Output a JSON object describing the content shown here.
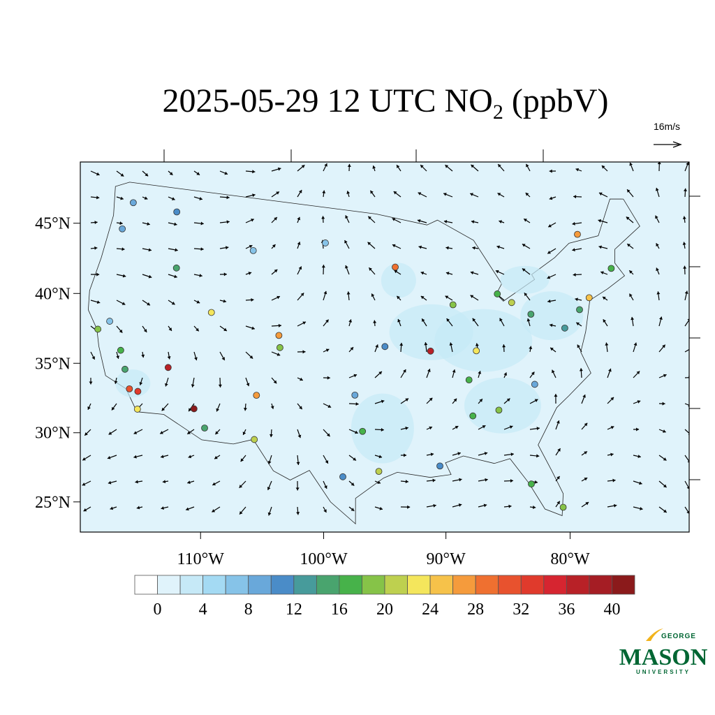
{
  "title": {
    "text": "2025-05-29 12 UTC NO",
    "subscript": "2",
    "suffix": " (ppbV)"
  },
  "wind_reference": "16m/s",
  "lat_ticks": [
    {
      "value": 45,
      "label": "45°N"
    },
    {
      "value": 40,
      "label": "40°N"
    },
    {
      "value": 35,
      "label": "35°N"
    },
    {
      "value": 30,
      "label": "30°N"
    },
    {
      "value": 25,
      "label": "25°N"
    }
  ],
  "lon_ticks": [
    {
      "value": -110,
      "label": "110°W"
    },
    {
      "value": -100,
      "label": "100°W"
    },
    {
      "value": -90,
      "label": "90°W"
    },
    {
      "value": -80,
      "label": "80°W"
    }
  ],
  "colorbar": {
    "levels": [
      0,
      2,
      4,
      6,
      8,
      10,
      12,
      14,
      16,
      18,
      20,
      22,
      24,
      26,
      28,
      30,
      32,
      34,
      36,
      38,
      40
    ],
    "colors": [
      "#ffffff",
      "#e0f3fb",
      "#c6e9f7",
      "#a4daf3",
      "#86c3e8",
      "#69a8da",
      "#4a8cc8",
      "#479b9b",
      "#49a46e",
      "#47b24a",
      "#86c348",
      "#bed04f",
      "#f4e65c",
      "#f6c24a",
      "#f59b3c",
      "#ef7030",
      "#e8522e",
      "#e03a2c",
      "#d62530",
      "#b82127",
      "#a51d24",
      "#8b1a1b"
    ],
    "ticks": [
      0,
      4,
      8,
      12,
      16,
      20,
      24,
      28,
      32,
      36,
      40
    ]
  },
  "stations": [
    {
      "lon": -118.2,
      "lat": 34.05,
      "value": 30
    },
    {
      "lon": -117.4,
      "lat": 34.0,
      "value": 32
    },
    {
      "lon": -117.1,
      "lat": 32.7,
      "value": 22
    },
    {
      "lon": -119.0,
      "lat": 35.4,
      "value": 14
    },
    {
      "lon": -119.8,
      "lat": 36.7,
      "value": 16
    },
    {
      "lon": -122.4,
      "lat": 37.8,
      "value": 18
    },
    {
      "lon": -121.5,
      "lat": 38.6,
      "value": 6
    },
    {
      "lon": -122.3,
      "lat": 47.6,
      "value": 8
    },
    {
      "lon": -122.7,
      "lat": 45.5,
      "value": 8
    },
    {
      "lon": -116.2,
      "lat": 43.6,
      "value": 14
    },
    {
      "lon": -115.1,
      "lat": 36.2,
      "value": 36
    },
    {
      "lon": -112.1,
      "lat": 33.5,
      "value": 40
    },
    {
      "lon": -110.9,
      "lat": 32.2,
      "value": 14
    },
    {
      "lon": -111.9,
      "lat": 40.8,
      "value": 22
    },
    {
      "lon": -105.0,
      "lat": 39.7,
      "value": 26
    },
    {
      "lon": -104.8,
      "lat": 38.8,
      "value": 18
    },
    {
      "lon": -106.6,
      "lat": 35.1,
      "value": 26
    },
    {
      "lon": -106.4,
      "lat": 31.8,
      "value": 20
    },
    {
      "lon": -96.8,
      "lat": 32.8,
      "value": 16
    },
    {
      "lon": -95.4,
      "lat": 29.8,
      "value": 20
    },
    {
      "lon": -98.5,
      "lat": 29.4,
      "value": 10
    },
    {
      "lon": -97.5,
      "lat": 35.5,
      "value": 8
    },
    {
      "lon": -94.6,
      "lat": 39.1,
      "value": 10
    },
    {
      "lon": -90.2,
      "lat": 38.6,
      "value": 36
    },
    {
      "lon": -93.3,
      "lat": 45.0,
      "value": 28
    },
    {
      "lon": -87.6,
      "lat": 41.9,
      "value": 18
    },
    {
      "lon": -83.0,
      "lat": 42.3,
      "value": 16
    },
    {
      "lon": -81.7,
      "lat": 41.5,
      "value": 20
    },
    {
      "lon": -80.0,
      "lat": 40.4,
      "value": 14
    },
    {
      "lon": -84.4,
      "lat": 33.7,
      "value": 18
    },
    {
      "lon": -86.8,
      "lat": 36.2,
      "value": 16
    },
    {
      "lon": -85.8,
      "lat": 38.3,
      "value": 22
    },
    {
      "lon": -80.8,
      "lat": 35.2,
      "value": 8
    },
    {
      "lon": -74.0,
      "lat": 40.7,
      "value": 24
    },
    {
      "lon": -75.2,
      "lat": 40.0,
      "value": 14
    },
    {
      "lon": -71.1,
      "lat": 42.4,
      "value": 16
    },
    {
      "lon": -77.0,
      "lat": 38.9,
      "value": 12
    },
    {
      "lon": -73.6,
      "lat": 45.5,
      "value": 26
    },
    {
      "lon": -82.5,
      "lat": 27.9,
      "value": 16
    },
    {
      "lon": -80.2,
      "lat": 25.8,
      "value": 18
    },
    {
      "lon": -90.1,
      "lat": 30.0,
      "value": 10
    },
    {
      "lon": -86.8,
      "lat": 33.5,
      "value": 16
    },
    {
      "lon": -100.8,
      "lat": 46.8,
      "value": 6
    },
    {
      "lon": -108.5,
      "lat": 45.8,
      "value": 6
    },
    {
      "lon": -117.4,
      "lat": 47.7,
      "value": 10
    }
  ],
  "logo": {
    "top": "GEORGE",
    "name": "MASON",
    "bottom": "UNIVERSITY"
  }
}
